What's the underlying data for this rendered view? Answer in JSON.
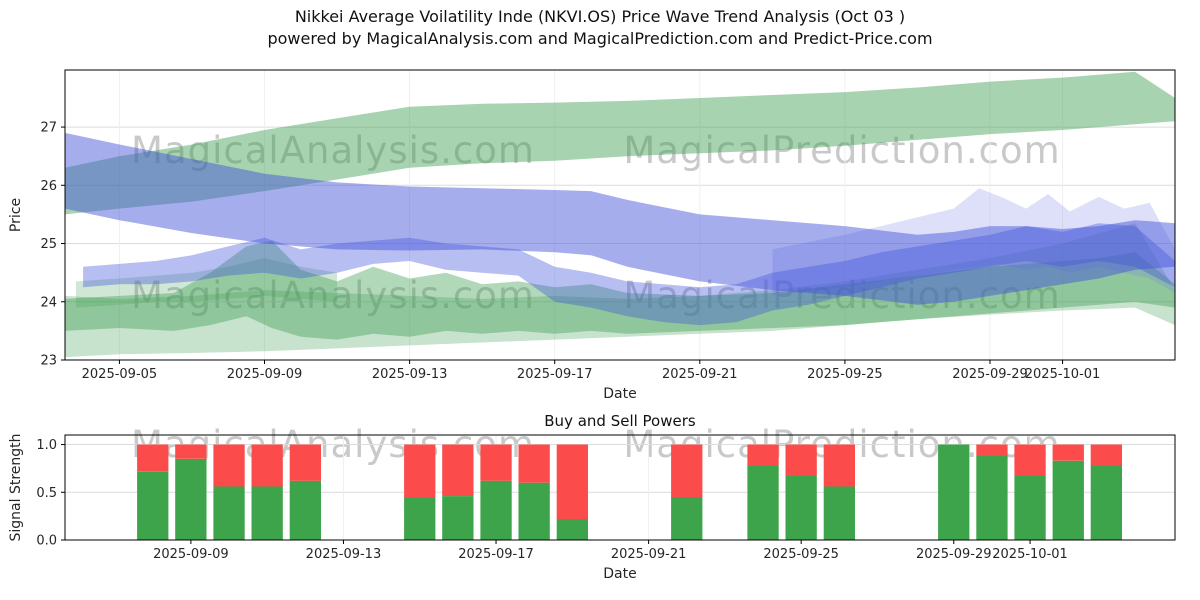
{
  "watermarks": {
    "texts": [
      "MagicalAnalysis.com",
      "MagicalPrediction.com"
    ],
    "color": "#c9c9c9"
  },
  "chart_data": [
    {
      "type": "area",
      "title": "Nikkei Average Voilatility Inde (NKVI.OS) Price Wave Trend Analysis (Oct 03 )",
      "subtitle": "powered by MagicalAnalysis.com and MagicalPrediction.com and Predict-Price.com",
      "xlabel": "Date",
      "ylabel": "Price",
      "x_axis_unit": "days since 2025-09-03",
      "xlim_days": [
        0.5,
        31.1
      ],
      "ylim": [
        23,
        27.98
      ],
      "grid": true,
      "yticks": [
        {
          "v": 23,
          "label": "23"
        },
        {
          "v": 24,
          "label": "24"
        },
        {
          "v": 25,
          "label": "25"
        },
        {
          "v": 26,
          "label": "26"
        },
        {
          "v": 27,
          "label": "27"
        }
      ],
      "xticks": [
        {
          "day": 2,
          "label": "2025-09-05"
        },
        {
          "day": 6,
          "label": "2025-09-09"
        },
        {
          "day": 10,
          "label": "2025-09-13"
        },
        {
          "day": 14,
          "label": "2025-09-17"
        },
        {
          "day": 18,
          "label": "2025-09-21"
        },
        {
          "day": 22,
          "label": "2025-09-25"
        },
        {
          "day": 26,
          "label": "2025-09-29"
        },
        {
          "day": 28,
          "label": "2025-10-01"
        }
      ],
      "bands": [
        {
          "name": "green-lower-wide",
          "color": "#44a05b",
          "opacity": 0.3,
          "x": [
            0.5,
            2,
            4,
            6,
            8,
            10,
            12,
            14,
            16,
            18,
            20,
            22,
            24,
            26,
            28,
            30,
            31.1
          ],
          "lo": [
            23.05,
            23.1,
            23.12,
            23.15,
            23.2,
            23.25,
            23.3,
            23.35,
            23.4,
            23.45,
            23.5,
            23.6,
            23.7,
            23.78,
            23.85,
            23.9,
            23.6
          ],
          "hi": [
            24.1,
            24.05,
            24.1,
            24.2,
            24.15,
            24.1,
            24.05,
            24.1,
            24.05,
            24.1,
            24.2,
            24.35,
            24.55,
            24.75,
            25.0,
            25.35,
            24.2
          ]
        },
        {
          "name": "green-thin-left",
          "color": "#44a05b",
          "opacity": 0.25,
          "x": [
            0.8,
            2,
            3,
            4,
            5,
            6,
            7,
            8
          ],
          "lo": [
            23.9,
            23.95,
            24.0,
            24.0,
            24.05,
            24.1,
            24.05,
            24.0
          ],
          "hi": [
            24.35,
            24.4,
            24.45,
            24.5,
            24.6,
            24.75,
            24.6,
            24.5
          ]
        },
        {
          "name": "green-wave",
          "color": "#3d9e50",
          "opacity": 0.4,
          "x": [
            0.5,
            2,
            3.5,
            4.5,
            5.5,
            6.2,
            7,
            8,
            9,
            10,
            11,
            12,
            13,
            14,
            15,
            16,
            18,
            20,
            22,
            24,
            26,
            28,
            29,
            30,
            31.1
          ],
          "lo": [
            23.5,
            23.55,
            23.5,
            23.6,
            23.75,
            23.55,
            23.4,
            23.35,
            23.45,
            23.4,
            23.5,
            23.45,
            23.5,
            23.45,
            23.5,
            23.45,
            23.5,
            23.55,
            23.6,
            23.7,
            23.8,
            23.9,
            23.95,
            24.0,
            23.9
          ],
          "hi": [
            24.05,
            24.1,
            24.15,
            24.5,
            24.95,
            25.05,
            24.55,
            24.35,
            24.6,
            24.4,
            24.5,
            24.3,
            24.35,
            24.25,
            24.3,
            24.15,
            24.1,
            24.15,
            24.3,
            24.45,
            24.6,
            24.7,
            24.75,
            24.85,
            24.3
          ]
        },
        {
          "name": "green-main-rising",
          "color": "#3d9e50",
          "opacity": 0.45,
          "x": [
            0.5,
            2,
            4,
            6,
            8,
            10,
            12,
            14,
            16,
            18,
            20,
            22,
            24,
            26,
            28,
            30,
            31.1
          ],
          "lo": [
            25.5,
            25.6,
            25.72,
            25.9,
            26.1,
            26.3,
            26.38,
            26.42,
            26.5,
            26.55,
            26.6,
            26.68,
            26.78,
            26.88,
            26.95,
            27.05,
            27.1
          ],
          "hi": [
            26.3,
            26.5,
            26.7,
            26.95,
            27.15,
            27.35,
            27.4,
            27.42,
            27.45,
            27.5,
            27.55,
            27.6,
            27.68,
            27.78,
            27.85,
            27.95,
            27.5
          ]
        },
        {
          "name": "blue-fringe-right",
          "color": "#7b84e8",
          "opacity": 0.25,
          "x": [
            20,
            22,
            23,
            24,
            25,
            25.7,
            26.3,
            27,
            27.6,
            28.2,
            29,
            29.7,
            30.4,
            31.1
          ],
          "lo": [
            24.1,
            24.25,
            24.35,
            24.45,
            24.55,
            24.6,
            24.65,
            24.55,
            24.6,
            24.5,
            24.6,
            24.5,
            24.4,
            24.15
          ],
          "hi": [
            24.9,
            25.15,
            25.3,
            25.45,
            25.6,
            25.95,
            25.8,
            25.6,
            25.85,
            25.55,
            25.8,
            25.6,
            25.7,
            24.9
          ]
        },
        {
          "name": "blue-main-descending",
          "color": "#4353d9",
          "opacity": 0.48,
          "x": [
            0.5,
            2,
            4,
            6,
            8,
            10,
            12,
            14,
            15,
            16,
            18,
            20,
            22,
            24,
            25,
            26,
            27,
            28,
            29,
            30,
            31.1
          ],
          "lo": [
            25.6,
            25.4,
            25.18,
            25.0,
            24.9,
            24.88,
            24.9,
            24.85,
            24.8,
            24.6,
            24.35,
            24.2,
            24.1,
            23.95,
            24.0,
            24.1,
            24.2,
            24.3,
            24.4,
            24.55,
            24.6
          ],
          "hi": [
            26.9,
            26.7,
            26.45,
            26.2,
            26.05,
            25.98,
            25.95,
            25.92,
            25.9,
            25.75,
            25.5,
            25.4,
            25.3,
            25.15,
            25.2,
            25.3,
            25.3,
            25.25,
            25.3,
            25.4,
            25.35
          ]
        },
        {
          "name": "blue-wave",
          "color": "#4353d9",
          "opacity": 0.38,
          "x": [
            1,
            2,
            3,
            4,
            5,
            6,
            7,
            8,
            9,
            10,
            11,
            12,
            13,
            14,
            15,
            16,
            17,
            18,
            19,
            20,
            21,
            22,
            23,
            24,
            25,
            26,
            27,
            28,
            29,
            30,
            31.1
          ],
          "lo": [
            24.25,
            24.3,
            24.3,
            24.35,
            24.45,
            24.5,
            24.4,
            24.5,
            24.65,
            24.7,
            24.55,
            24.5,
            24.45,
            24.0,
            23.9,
            23.75,
            23.65,
            23.6,
            23.65,
            23.85,
            23.95,
            24.1,
            24.25,
            24.4,
            24.5,
            24.6,
            24.7,
            24.6,
            24.7,
            24.6,
            24.25
          ],
          "hi": [
            24.6,
            24.65,
            24.7,
            24.8,
            24.95,
            25.1,
            24.9,
            25.0,
            25.05,
            25.1,
            25.0,
            24.95,
            24.9,
            24.6,
            24.5,
            24.35,
            24.3,
            24.25,
            24.3,
            24.5,
            24.6,
            24.7,
            24.85,
            24.95,
            25.05,
            25.15,
            25.3,
            25.2,
            25.35,
            25.3,
            24.7
          ]
        }
      ]
    },
    {
      "type": "bar",
      "title": "Buy and Sell Powers",
      "xlabel": "Date",
      "ylabel": "Signal Strength",
      "x_axis_unit": "days since 2025-09-03",
      "xlim_days": [
        2.7,
        31.8
      ],
      "ylim": [
        0,
        1.1
      ],
      "grid": true,
      "bar_width_days": 0.82,
      "colors": {
        "buy": "#3ea44b",
        "sell": "#fb4b4b"
      },
      "legend": [
        "buy (green)",
        "sell (red)"
      ],
      "yticks": [
        {
          "v": 0,
          "label": "0.0"
        },
        {
          "v": 0.5,
          "label": "0.5"
        },
        {
          "v": 1,
          "label": "1.0"
        }
      ],
      "xticks": [
        {
          "day": 6,
          "label": "2025-09-09"
        },
        {
          "day": 10,
          "label": "2025-09-13"
        },
        {
          "day": 14,
          "label": "2025-09-17"
        },
        {
          "day": 18,
          "label": "2025-09-21"
        },
        {
          "day": 22,
          "label": "2025-09-25"
        },
        {
          "day": 26,
          "label": "2025-09-29"
        },
        {
          "day": 28,
          "label": "2025-10-01"
        }
      ],
      "bars": [
        {
          "date": "2025-09-08",
          "day": 5,
          "buy": 0.72,
          "sell": 0.28
        },
        {
          "date": "2025-09-09",
          "day": 6,
          "buy": 0.85,
          "sell": 0.15
        },
        {
          "date": "2025-09-10",
          "day": 7,
          "buy": 0.56,
          "sell": 0.44
        },
        {
          "date": "2025-09-11",
          "day": 8,
          "buy": 0.56,
          "sell": 0.44
        },
        {
          "date": "2025-09-12",
          "day": 9,
          "buy": 0.62,
          "sell": 0.38
        },
        {
          "date": "2025-09-15",
          "day": 12,
          "buy": 0.44,
          "sell": 0.56
        },
        {
          "date": "2025-09-16",
          "day": 13,
          "buy": 0.46,
          "sell": 0.54
        },
        {
          "date": "2025-09-17",
          "day": 14,
          "buy": 0.62,
          "sell": 0.38
        },
        {
          "date": "2025-09-18",
          "day": 15,
          "buy": 0.6,
          "sell": 0.4
        },
        {
          "date": "2025-09-19",
          "day": 16,
          "buy": 0.22,
          "sell": 0.78
        },
        {
          "date": "2025-09-22",
          "day": 19,
          "buy": 0.45,
          "sell": 0.55
        },
        {
          "date": "2025-09-24",
          "day": 21,
          "buy": 0.78,
          "sell": 0.22
        },
        {
          "date": "2025-09-25",
          "day": 22,
          "buy": 0.67,
          "sell": 0.33
        },
        {
          "date": "2025-09-26",
          "day": 23,
          "buy": 0.56,
          "sell": 0.44
        },
        {
          "date": "2025-09-29",
          "day": 26,
          "buy": 1.0,
          "sell": 0.0
        },
        {
          "date": "2025-09-30",
          "day": 27,
          "buy": 0.88,
          "sell": 0.12
        },
        {
          "date": "2025-10-01",
          "day": 28,
          "buy": 0.67,
          "sell": 0.33
        },
        {
          "date": "2025-10-02",
          "day": 29,
          "buy": 0.83,
          "sell": 0.17
        },
        {
          "date": "2025-10-03",
          "day": 30,
          "buy": 0.78,
          "sell": 0.22
        }
      ]
    }
  ]
}
